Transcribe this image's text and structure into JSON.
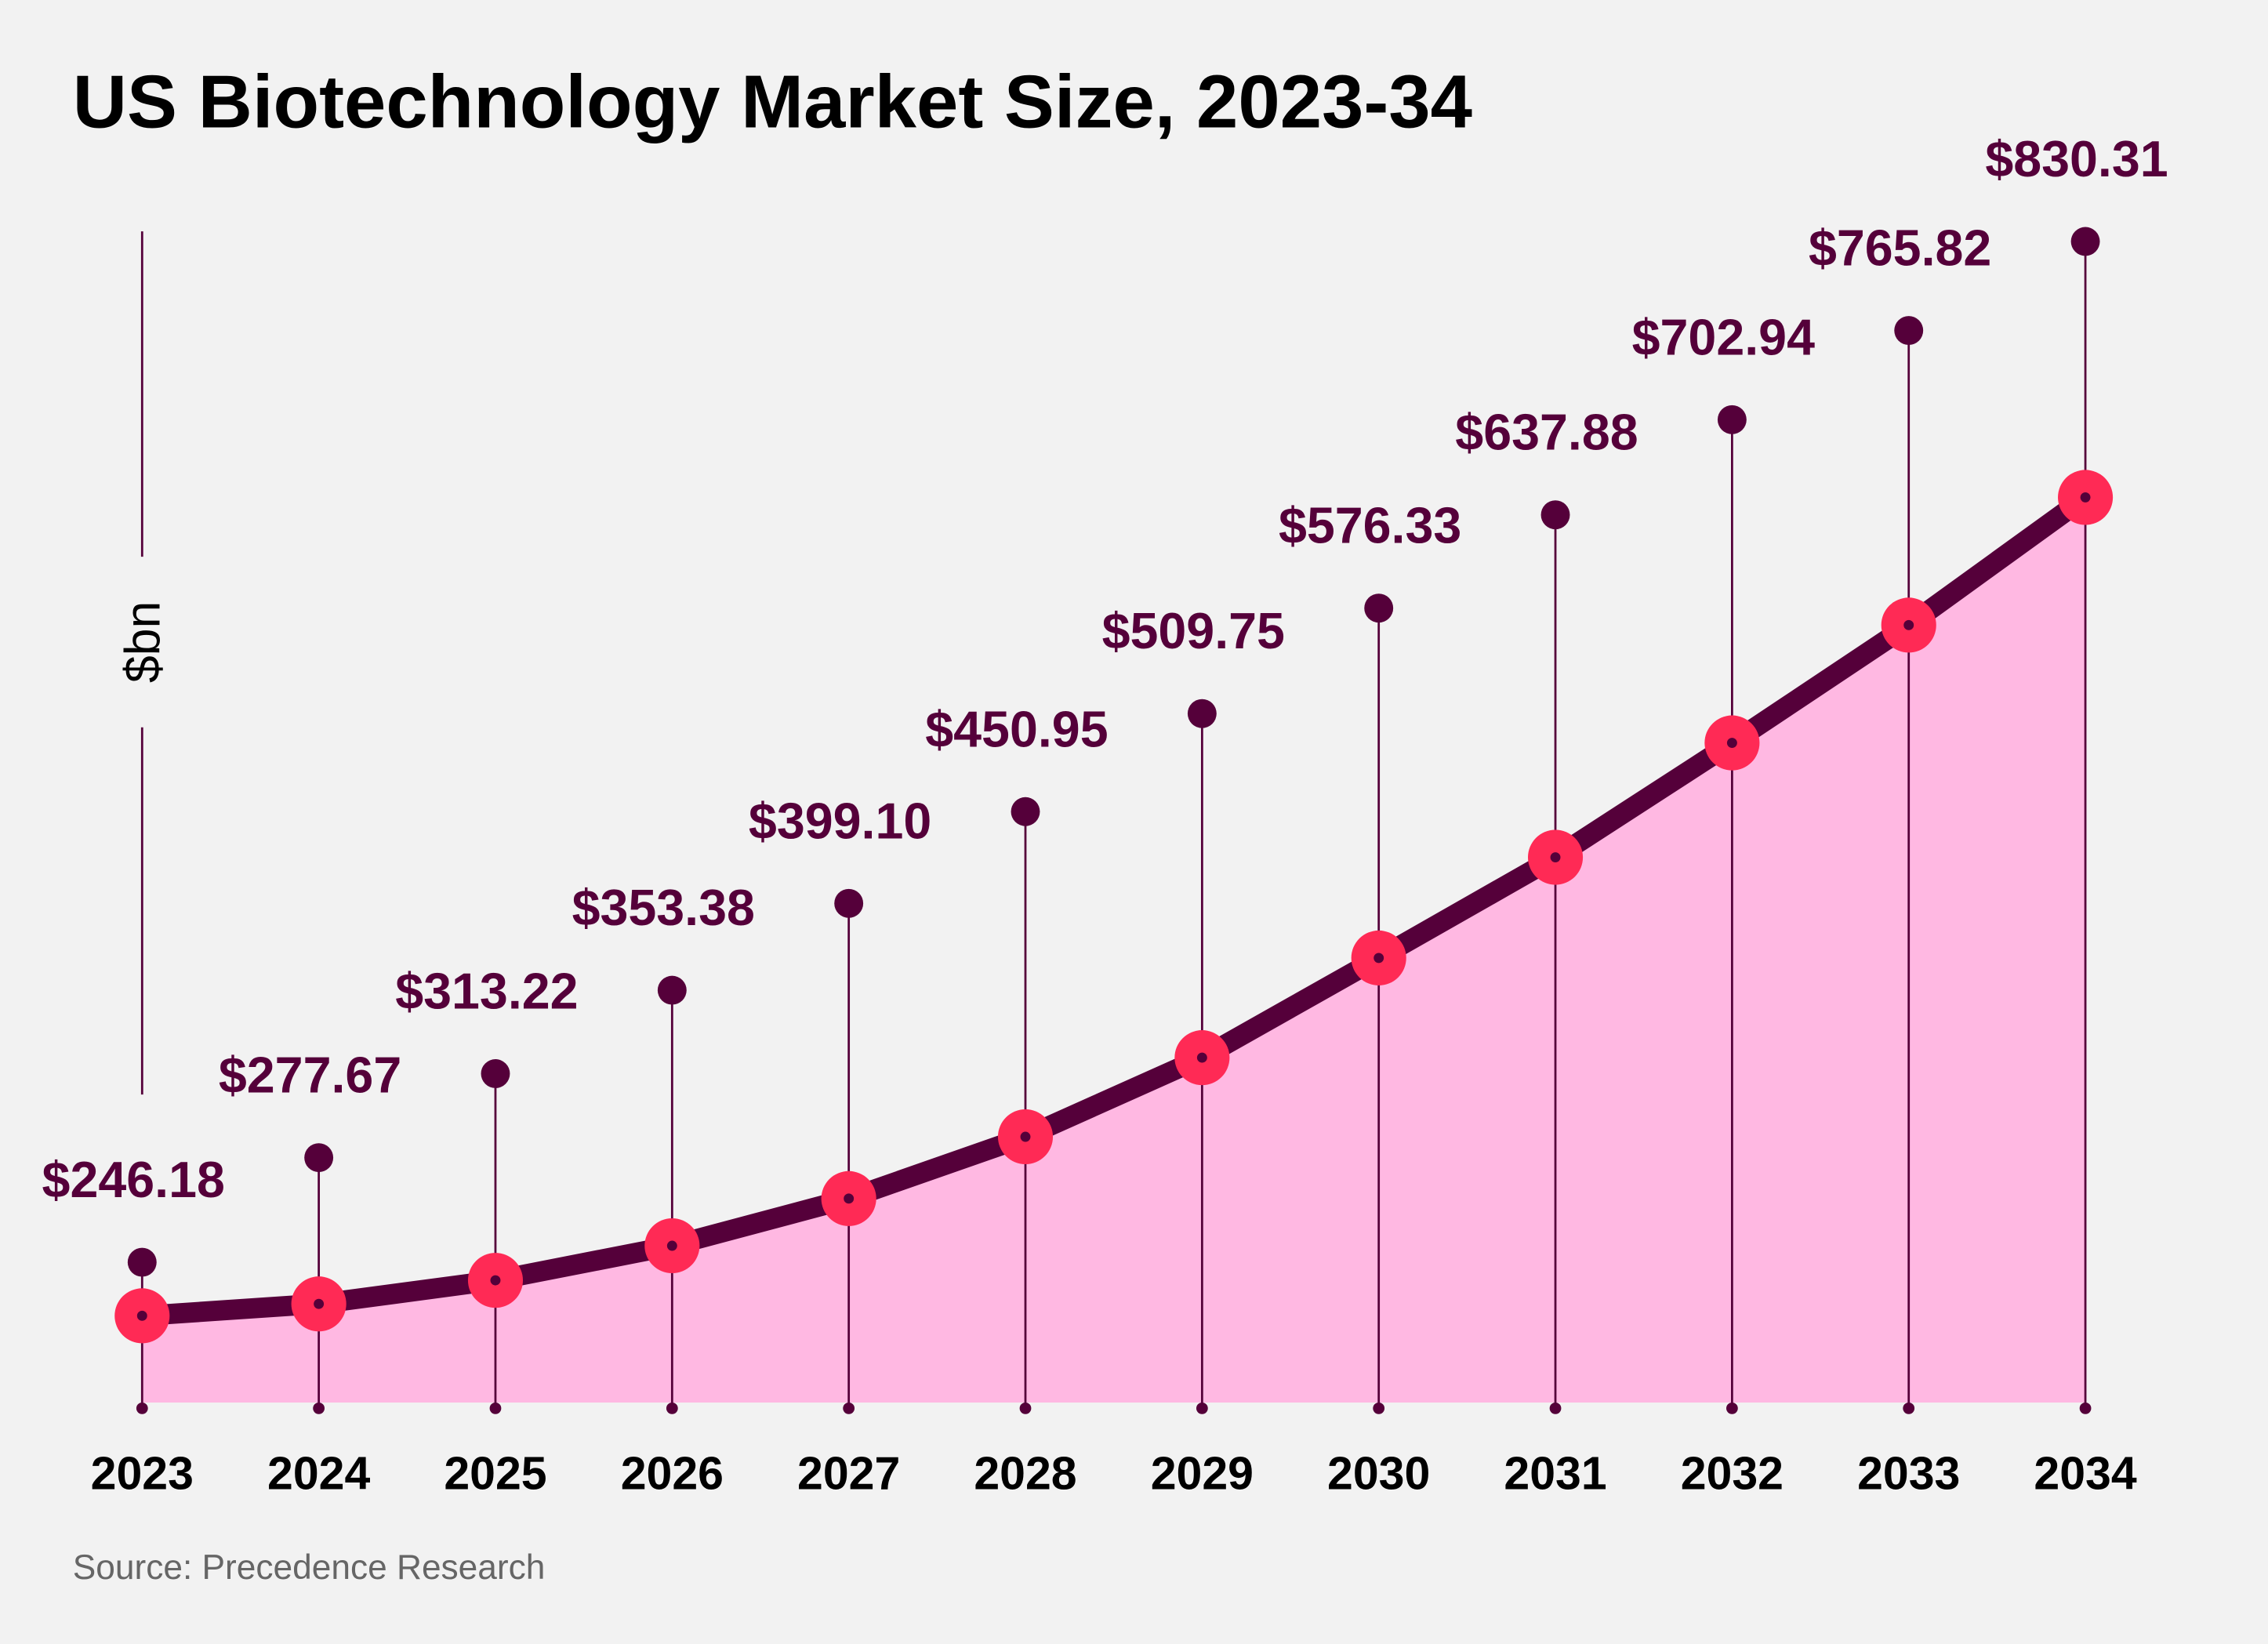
{
  "chart_data": {
    "type": "line",
    "title": "US Biotechnology Market Size, 2023-34",
    "ylabel": "$bn",
    "xlabel": "",
    "categories": [
      "2023",
      "2024",
      "2025",
      "2026",
      "2027",
      "2028",
      "2029",
      "2030",
      "2031",
      "2032",
      "2033",
      "2034"
    ],
    "values": [
      246.18,
      277.67,
      313.22,
      353.38,
      399.1,
      450.95,
      509.75,
      576.33,
      637.88,
      702.94,
      765.82,
      830.31
    ],
    "value_labels": [
      "$246.18",
      "$277.67",
      "$313.22",
      "$353.38",
      "$399.10",
      "$450.95",
      "$509.75",
      "$576.33",
      "$637.88",
      "$702.94",
      "$765.82",
      "$830.31"
    ],
    "grid": false,
    "source": "Source: Precedence Research",
    "colors": {
      "background": "#f2f2f2",
      "line": "#55003a",
      "area": "#ffb8e2",
      "marker": "#ff2a55",
      "label": "#55003a"
    }
  }
}
